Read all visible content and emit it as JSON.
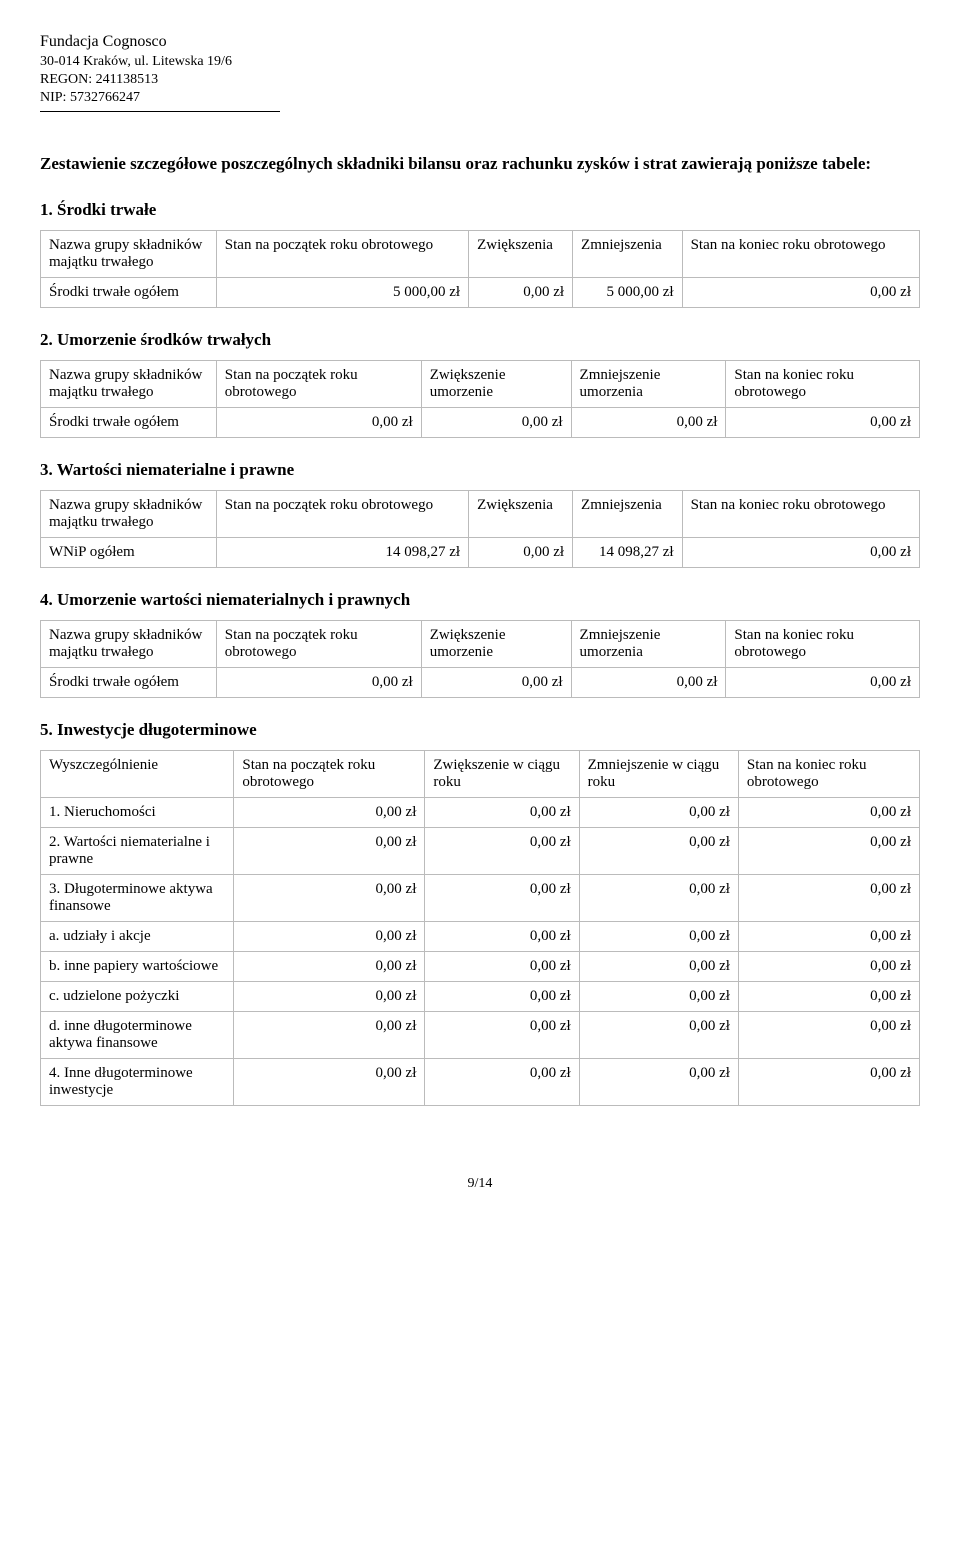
{
  "header": {
    "org": "Fundacja Cognosco",
    "addr": "30-014 Kraków, ul. Litewska 19/6",
    "regon": "REGON: 241138513",
    "nip": "NIP: 5732766247"
  },
  "intro": "Zestawienie szczegółowe poszczególnych składniki bilansu oraz rachunku zysków i strat zawierają poniższe tabele:",
  "s1": {
    "title": "1. Środki trwałe",
    "h1": "Nazwa grupy składników majątku trwałego",
    "h2": "Stan na początek roku obrotowego",
    "h3": "Zwiększenia",
    "h4": "Zmniejszenia",
    "h5": "Stan na koniec roku obrotowego",
    "r1": "Środki trwałe ogółem",
    "v1": "5 000,00 zł",
    "v2": "0,00 zł",
    "v3": "5 000,00 zł",
    "v4": "0,00 zł"
  },
  "s2": {
    "title": "2. Umorzenie środków trwałych",
    "h1": "Nazwa grupy składników majątku trwałego",
    "h2": "Stan na początek roku obrotowego",
    "h3": "Zwiększenie umorzenie",
    "h4": "Zmniejszenie umorzenia",
    "h5": "Stan na koniec roku obrotowego",
    "r1": "Środki trwałe ogółem",
    "v1": "0,00 zł",
    "v2": "0,00 zł",
    "v3": "0,00 zł",
    "v4": "0,00 zł"
  },
  "s3": {
    "title": "3. Wartości niematerialne i prawne",
    "h1": "Nazwa grupy składników majątku trwałego",
    "h2": "Stan na początek roku obrotowego",
    "h3": "Zwiększenia",
    "h4": "Zmniejszenia",
    "h5": "Stan na koniec roku obrotowego",
    "r1": "WNiP ogółem",
    "v1": "14 098,27 zł",
    "v2": "0,00 zł",
    "v3": "14 098,27 zł",
    "v4": "0,00 zł"
  },
  "s4": {
    "title": "4. Umorzenie wartości niematerialnych i prawnych",
    "h1": "Nazwa grupy składników majątku trwałego",
    "h2": "Stan na początek roku obrotowego",
    "h3": "Zwiększenie umorzenie",
    "h4": "Zmniejszenie umorzenia",
    "h5": "Stan na koniec roku obrotowego",
    "r1": "Środki trwałe ogółem",
    "v1": "0,00 zł",
    "v2": "0,00 zł",
    "v3": "0,00 zł",
    "v4": "0,00 zł"
  },
  "s5": {
    "title": "5. Inwestycje długoterminowe",
    "h1": "Wyszczególnienie",
    "h2": "Stan na początek roku obrotowego",
    "h3": "Zwiększenie w ciągu roku",
    "h4": "Zmniejszenie w ciągu roku",
    "h5": "Stan na koniec roku obrotowego",
    "rows": [
      {
        "label": "1. Nieruchomości",
        "v": [
          "0,00 zł",
          "0,00 zł",
          "0,00 zł",
          "0,00 zł"
        ]
      },
      {
        "label": "2. Wartości niematerialne i prawne",
        "v": [
          "0,00 zł",
          "0,00 zł",
          "0,00 zł",
          "0,00 zł"
        ]
      },
      {
        "label": "3. Długoterminowe aktywa finansowe",
        "v": [
          "0,00 zł",
          "0,00 zł",
          "0,00 zł",
          "0,00 zł"
        ]
      },
      {
        "label": "a. udziały i akcje",
        "v": [
          "0,00 zł",
          "0,00 zł",
          "0,00 zł",
          "0,00 zł"
        ]
      },
      {
        "label": "b. inne papiery wartościowe",
        "v": [
          "0,00 zł",
          "0,00 zł",
          "0,00 zł",
          "0,00 zł"
        ]
      },
      {
        "label": "c. udzielone pożyczki",
        "v": [
          "0,00 zł",
          "0,00 zł",
          "0,00 zł",
          "0,00 zł"
        ]
      },
      {
        "label": "d. inne długoterminowe aktywa finansowe",
        "v": [
          "0,00 zł",
          "0,00 zł",
          "0,00 zł",
          "0,00 zł"
        ]
      },
      {
        "label": "4. Inne długoterminowe inwestycje",
        "v": [
          "0,00 zł",
          "0,00 zł",
          "0,00 zł",
          "0,00 zł"
        ]
      }
    ]
  },
  "footer": "9/14"
}
